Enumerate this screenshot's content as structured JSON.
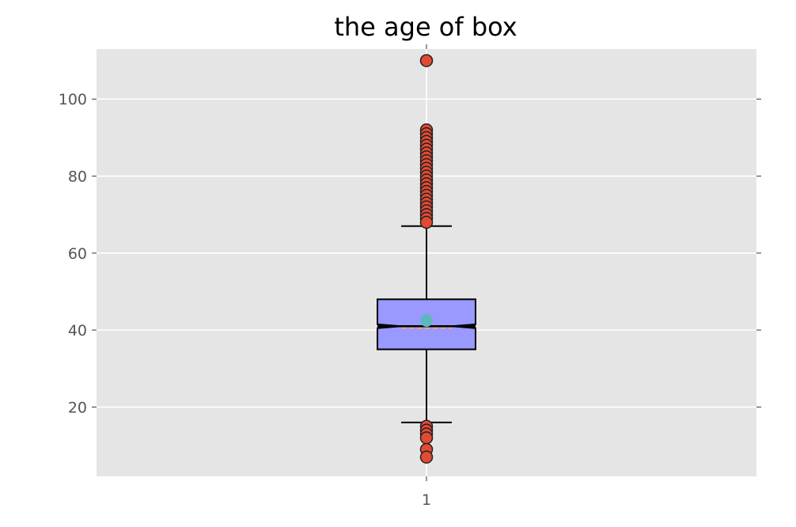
{
  "chart_data": {
    "type": "box",
    "title": "the age of box",
    "xlabel": "",
    "ylabel": "",
    "categories": [
      "1"
    ],
    "ylim": [
      2,
      113
    ],
    "yticks": [
      20,
      40,
      60,
      80,
      100
    ],
    "grid": true,
    "boxes": [
      {
        "category": "1",
        "q1": 35,
        "median": 41,
        "q3": 48,
        "mean": 42.5,
        "whisker_low": 16,
        "whisker_high": 67,
        "notched": true,
        "notch_low": 40.5,
        "notch_high": 41.5,
        "outliers": [
          110,
          92,
          91,
          90,
          89,
          88,
          87,
          86,
          85,
          84,
          83,
          82,
          81,
          80,
          79,
          78,
          77,
          76,
          75,
          74,
          73,
          72,
          71,
          70,
          69,
          68,
          15,
          14,
          13,
          12,
          9,
          7
        ]
      }
    ],
    "colors": {
      "plot_background": "#e5e5e5",
      "grid": "#ffffff",
      "box_fill": "#9999ff",
      "box_edge": "#000000",
      "median_line": "#000000",
      "notch_median": "#e8a37d",
      "mean_marker": "#5fb6c0",
      "outlier_fill": "#e24a33",
      "outlier_edge": "#222222",
      "whisker": "#000000"
    }
  }
}
